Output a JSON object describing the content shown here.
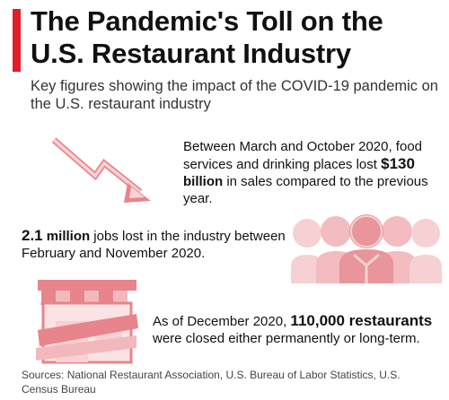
{
  "header": {
    "title": "The Pandemic's Toll on the U.S. Restaurant Industry",
    "subtitle": "Key figures showing the impact of the COVID-19 pandemic on the U.S. restaurant industry"
  },
  "stats": [
    {
      "pre": "Between March and October 2020, food services and drinking places lost ",
      "value_number": "$130",
      "value_unit": " billion",
      "post": " in sales compared to the previous year."
    },
    {
      "value_number": "2.1",
      "value_unit": " million",
      "post": " jobs lost in the industry between February and November 2020."
    },
    {
      "pre": "As of December 2020, ",
      "value_number": "110,000",
      "value_unit": " restaurants",
      "post": " were closed either permanently or long-term."
    }
  ],
  "footer": {
    "sources": "Sources: National Restaurant Association, U.S. Bureau of Labor Statistics, U.S. Census Bureau"
  },
  "colors": {
    "accent": "#e11d2a",
    "icon_pink": "#f2b9bd",
    "icon_red": "#e8848b"
  },
  "icons": [
    "downward-trend-arrow-icon",
    "people-group-icon",
    "closed-storefront-icon"
  ]
}
